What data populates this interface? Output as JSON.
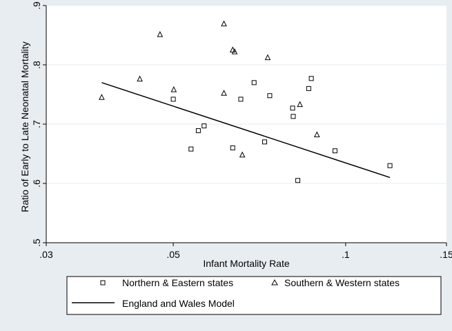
{
  "chart_data": {
    "type": "scatter",
    "xlabel": "Infant Mortality Rate",
    "ylabel": "Ratio of Early to Late Neonatal Mortality",
    "x_scale": "log",
    "xlim": [
      0.03,
      0.15
    ],
    "ylim": [
      0.5,
      0.9
    ],
    "x_ticks": [
      {
        "value": 0.03,
        "label": ".03"
      },
      {
        "value": 0.05,
        "label": ".05"
      },
      {
        "value": 0.1,
        "label": ".1"
      },
      {
        "value": 0.15,
        "label": ".15"
      }
    ],
    "y_ticks": [
      {
        "value": 0.5,
        "label": ".5"
      },
      {
        "value": 0.6,
        "label": ".6"
      },
      {
        "value": 0.7,
        "label": ".7"
      },
      {
        "value": 0.8,
        "label": ".8"
      },
      {
        "value": 0.9,
        "label": ".9"
      }
    ],
    "grid": "horizontal",
    "legend_position": "bottom",
    "series": [
      {
        "name": "Northern & Eastern states",
        "marker": "square",
        "points": [
          [
            0.05,
            0.742
          ],
          [
            0.0537,
            0.658
          ],
          [
            0.0553,
            0.689
          ],
          [
            0.0566,
            0.697
          ],
          [
            0.0635,
            0.66
          ],
          [
            0.0656,
            0.742
          ],
          [
            0.0692,
            0.77
          ],
          [
            0.0722,
            0.67
          ],
          [
            0.0737,
            0.748
          ],
          [
            0.0808,
            0.727
          ],
          [
            0.081,
            0.713
          ],
          [
            0.0825,
            0.605
          ],
          [
            0.0862,
            0.76
          ],
          [
            0.0871,
            0.777
          ],
          [
            0.0958,
            0.655
          ],
          [
            0.1195,
            0.63
          ]
        ]
      },
      {
        "name": "Southern & Western states",
        "marker": "triangle",
        "points": [
          [
            0.0375,
            0.745
          ],
          [
            0.0437,
            0.776
          ],
          [
            0.0474,
            0.851
          ],
          [
            0.0501,
            0.758
          ],
          [
            0.0613,
            0.869
          ],
          [
            0.0613,
            0.752
          ],
          [
            0.0635,
            0.825
          ],
          [
            0.064,
            0.822
          ],
          [
            0.066,
            0.648
          ],
          [
            0.0731,
            0.812
          ],
          [
            0.0832,
            0.733
          ],
          [
            0.0891,
            0.682
          ]
        ]
      },
      {
        "name": "England and Wales Model",
        "type": "line",
        "points": [
          [
            0.0375,
            0.77
          ],
          [
            0.1195,
            0.61
          ]
        ]
      }
    ]
  }
}
